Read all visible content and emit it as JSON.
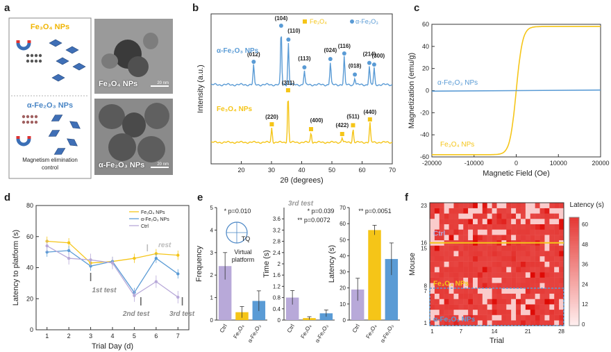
{
  "panels": {
    "a": {
      "letter": "a",
      "fe3o4_label": "Fe₃O₄ NPs",
      "afe2o3_label": "α-Fe₂O₃ NPs",
      "caption": "Magnetism elimination control",
      "tem_top_label": "Fe₃O₄ NPs",
      "tem_bottom_label": "α-Fe₂O₃ NPs",
      "scale_bar": "20 nm"
    },
    "b": {
      "letter": "b",
      "legend": [
        "Fe₃O₄",
        "α-Fe₂O₃"
      ],
      "series_label_top": "α-Fe₂O₃ NPs",
      "series_label_bottom": "Fe₃O₄ NPs",
      "peaks_top": [
        "(012)",
        "(104)",
        "(110)",
        "(113)",
        "(024)",
        "(116)",
        "(018)",
        "(214)",
        "(300)"
      ],
      "peaks_bottom": [
        "(220)",
        "(311)",
        "(400)",
        "(422)",
        "(511)",
        "(440)"
      ]
    },
    "c": {
      "letter": "c",
      "label_top": "α-Fe₂O₃ NPs",
      "label_bottom": "Fe₃O₄ NPs"
    },
    "d": {
      "letter": "d",
      "legend": [
        "Fe₃O₄ NPs",
        "α-Fe₂O₃ NPs",
        "Ctrl"
      ],
      "annotations": [
        "rest",
        "1st test",
        "2nd test",
        "3rd test"
      ]
    },
    "e": {
      "letter": "e",
      "p_labels": [
        "* p=0.010",
        "* p=0.039",
        "** p=0.0072",
        "** p=0.0051"
      ],
      "third_test": "3rd test",
      "tq": "TQ",
      "virtual_platform": "Virtual platform",
      "categories": [
        "Ctrl",
        "Fe₃O₄",
        "α-Fe₂O₃"
      ]
    },
    "f": {
      "letter": "f",
      "colorbar_title": "Latency (s)",
      "colorbar_ticks": [
        "60",
        "48",
        "36",
        "24",
        "12",
        "0"
      ],
      "groups": [
        "Ctrl",
        "Fe₃O₄ NPs",
        "α-Fe₂O₃ NPs"
      ],
      "ylabel": "Mouse",
      "xlabel": "Trial",
      "yticks": [
        "23",
        "16",
        "15",
        "8",
        "7",
        "1"
      ],
      "xticks": [
        "1",
        "7",
        "14",
        "21",
        "28"
      ]
    }
  },
  "colors": {
    "blue": "#5a9bd5",
    "yellow": "#f5c518",
    "purple": "#b8a9d9",
    "red": "#e53935"
  },
  "chart_data": [
    {
      "type": "line",
      "panel": "b",
      "xlabel": "2θ (degrees)",
      "ylabel": "Intensity (a.u.)",
      "xlim": [
        10,
        70
      ],
      "xticks": [
        20,
        30,
        40,
        50,
        60,
        70
      ],
      "series": [
        {
          "name": "α-Fe₂O₃ NPs",
          "peaks_x": [
            24.1,
            33.2,
            35.6,
            40.9,
            49.5,
            54.1,
            57.6,
            62.4,
            64.0
          ],
          "peaks_rel": [
            0.35,
            1.0,
            0.75,
            0.25,
            0.4,
            0.5,
            0.12,
            0.33,
            0.3
          ]
        },
        {
          "name": "Fe₃O₄ NPs",
          "peaks_x": [
            30.1,
            35.5,
            43.1,
            53.4,
            57.0,
            62.6
          ],
          "peaks_rel": [
            0.3,
            1.0,
            0.2,
            0.1,
            0.28,
            0.4
          ]
        }
      ]
    },
    {
      "type": "line",
      "panel": "c",
      "xlabel": "Magnetic Field (Oe)",
      "ylabel": "Magnetization (emu/g)",
      "xlim": [
        -20000,
        20000
      ],
      "ylim": [
        -60,
        60
      ],
      "xticks": [
        -20000,
        -10000,
        0,
        10000,
        20000
      ],
      "yticks": [
        -60,
        -40,
        -20,
        0,
        20,
        40,
        60
      ],
      "series": [
        {
          "name": "α-Fe₂O₃ NPs",
          "x": [
            -20000,
            20000
          ],
          "y": [
            -0.5,
            0.5
          ]
        },
        {
          "name": "Fe₃O₄ NPs",
          "x": [
            -20000,
            -10000,
            -5000,
            -2000,
            -1000,
            -500,
            0,
            500,
            1000,
            2000,
            5000,
            10000,
            20000
          ],
          "y": [
            -58,
            -56,
            -53,
            -45,
            -35,
            -22,
            0,
            22,
            35,
            45,
            53,
            56,
            58
          ]
        }
      ]
    },
    {
      "type": "line",
      "panel": "d",
      "xlabel": "Trial Day (d)",
      "ylabel": "Latency to platform (s)",
      "xlim": [
        0.5,
        7.5
      ],
      "ylim": [
        0,
        80
      ],
      "xticks": [
        1,
        2,
        3,
        4,
        5,
        6,
        7
      ],
      "yticks": [
        0,
        20,
        40,
        60,
        80
      ],
      "series": [
        {
          "name": "Fe₃O₄ NPs",
          "x": [
            1,
            2,
            3,
            4,
            5,
            6,
            7
          ],
          "y": [
            57,
            56,
            43,
            44,
            46,
            49,
            48
          ]
        },
        {
          "name": "α-Fe₂O₃ NPs",
          "x": [
            1,
            2,
            3,
            4,
            5,
            6,
            7
          ],
          "y": [
            50,
            51,
            41,
            44,
            24,
            46,
            36
          ]
        },
        {
          "name": "Ctrl",
          "x": [
            1,
            2,
            3,
            4,
            5,
            6,
            7
          ],
          "y": [
            54,
            46,
            45,
            43,
            22,
            31,
            21
          ]
        }
      ]
    },
    {
      "type": "bar",
      "panel": "e",
      "categories": [
        "Ctrl",
        "Fe₃O₄",
        "α-Fe₂O₃"
      ],
      "subplots": [
        {
          "ylabel": "Frequency",
          "ylim": [
            0,
            5
          ],
          "yticks": [
            0,
            1,
            2,
            3,
            4,
            5
          ],
          "values": [
            2.4,
            0.35,
            0.85
          ],
          "errors": [
            0.6,
            0.25,
            0.45
          ]
        },
        {
          "ylabel": "Time (s)",
          "ylim": [
            0,
            4.0
          ],
          "yticks": [
            0.0,
            0.4,
            0.8,
            1.2,
            1.6,
            2.0,
            2.4,
            2.8,
            3.2,
            3.6
          ],
          "values": [
            0.8,
            0.07,
            0.24
          ],
          "errors": [
            0.25,
            0.05,
            0.12
          ]
        },
        {
          "ylabel": "Latency (s)",
          "ylim": [
            0,
            70
          ],
          "yticks": [
            0,
            10,
            20,
            30,
            40,
            50,
            60,
            70
          ],
          "values": [
            19,
            56,
            38
          ],
          "errors": [
            7,
            3,
            10
          ]
        }
      ]
    },
    {
      "type": "heatmap",
      "panel": "f",
      "xlabel": "Trial",
      "ylabel": "Mouse",
      "rows": 23,
      "cols": 28,
      "vmin": 0,
      "vmax": 60
    }
  ]
}
